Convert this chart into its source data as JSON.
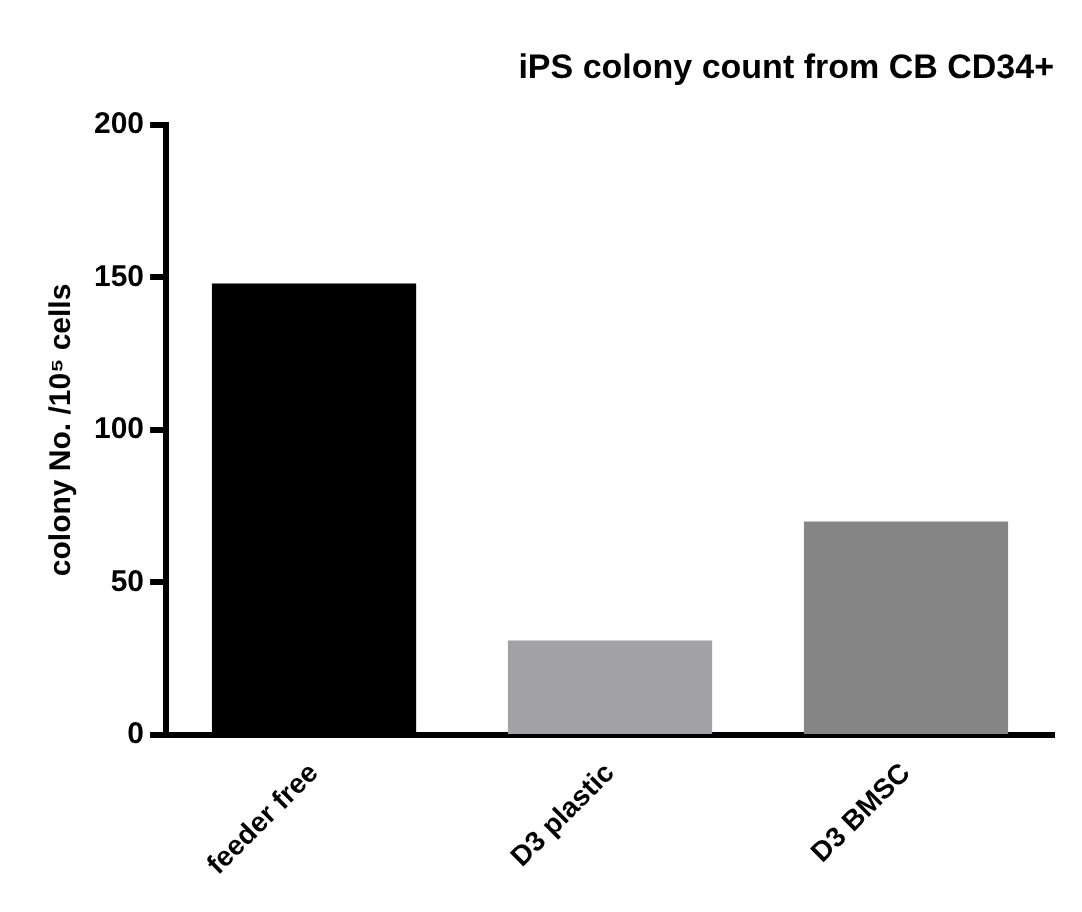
{
  "chart_data": {
    "type": "bar",
    "title": "iPS colony count from CB CD34+",
    "ylabel": "colony No. /10⁵ cells",
    "categories": [
      "feeder free",
      "D3 plastic",
      "D3 BMSC"
    ],
    "values": [
      148,
      31,
      70
    ],
    "colors": [
      "#000000",
      "#a2a2a6",
      "#858585"
    ],
    "ylim": [
      0,
      200
    ],
    "yticks": [
      0,
      50,
      100,
      150,
      200
    ],
    "grid": false,
    "legend": false
  }
}
